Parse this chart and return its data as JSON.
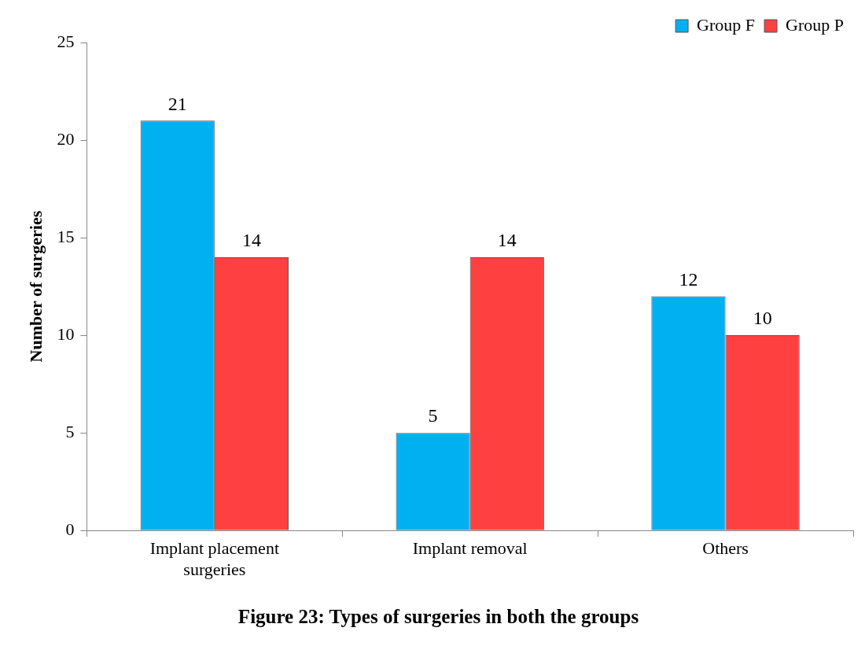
{
  "chart_data": {
    "type": "bar",
    "title": "Figure 23: Types of surgeries in both the groups",
    "ylabel": "Number of surgeries",
    "categories": [
      "Implant placement surgeries",
      "Implant removal",
      "Others"
    ],
    "series": [
      {
        "name": "Group F",
        "color": "#00b0f0",
        "values": [
          21,
          5,
          12
        ]
      },
      {
        "name": "Group P",
        "color": "#ff4040",
        "values": [
          14,
          14,
          10
        ]
      }
    ],
    "ylim": [
      0,
      25
    ],
    "yticks": [
      0,
      5,
      10,
      15,
      20,
      25
    ],
    "grid": false,
    "legend": "top right",
    "data_labels": true
  }
}
